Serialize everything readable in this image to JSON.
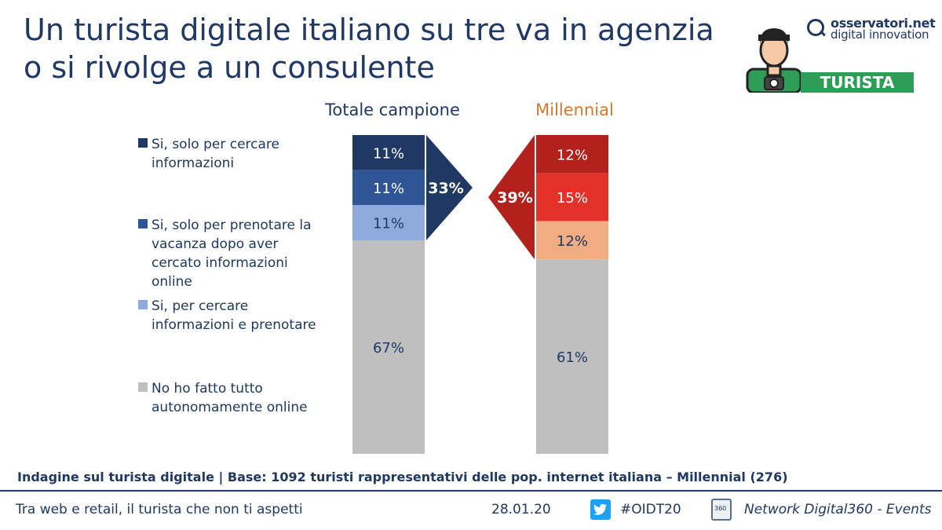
{
  "title_lines": [
    "Un turista digitale italiano su tre va in agenzia",
    "o si rivolge a un consulente"
  ],
  "logo": {
    "line1": "osservatori.net",
    "line2": "digital innovation"
  },
  "badge": "TURISTA",
  "legend": [
    {
      "label": "Si, solo per cercare informazioni",
      "color": "#1f3864"
    },
    {
      "label": "Si, solo per prenotare la vacanza dopo aver cercato informazioni online",
      "color": "#2f5597"
    },
    {
      "label": "Si, per cercare informazioni e prenotare",
      "color": "#8faadc"
    },
    {
      "label": "No ho fatto tutto autonomamente online",
      "color": "#bfbfbf"
    }
  ],
  "chart_data": {
    "type": "bar",
    "stacked": true,
    "ylim": [
      0,
      100
    ],
    "categories": [
      "Totale campione",
      "Millennial"
    ],
    "series": [
      {
        "name": "Si, solo per cercare informazioni",
        "values": [
          11,
          12
        ],
        "colors": [
          "#1f3864",
          "#b3211d"
        ]
      },
      {
        "name": "Si, solo per prenotare la vacanza dopo aver cercato informazioni online",
        "values": [
          11,
          15
        ],
        "colors": [
          "#2f5597",
          "#e53228"
        ]
      },
      {
        "name": "Si, per cercare informazioni e prenotare",
        "values": [
          11,
          12
        ],
        "colors": [
          "#8faadc",
          "#f0ad82"
        ]
      },
      {
        "name": "No ho fatto tutto autonomamente online",
        "values": [
          67,
          61
        ],
        "colors": [
          "#bfbfbf",
          "#bfbfbf"
        ]
      }
    ],
    "totals": [
      {
        "category": "Totale campione",
        "label": "33%",
        "color": "#1f3864"
      },
      {
        "category": "Millennial",
        "label": "39%",
        "color": "#b3211d"
      }
    ],
    "category_colors": [
      "#1f3864",
      "#d4782f"
    ]
  },
  "source": "Indagine sul turista digitale | Base: 1092 turisti rappresentativi delle pop. internet italiana – Millennial (276)",
  "footer": {
    "left": "Tra web e retail, il turista che non ti aspetti",
    "date": "28.01.20",
    "hashtag": "#OIDT20",
    "network": "Network Digital360 - Events"
  }
}
